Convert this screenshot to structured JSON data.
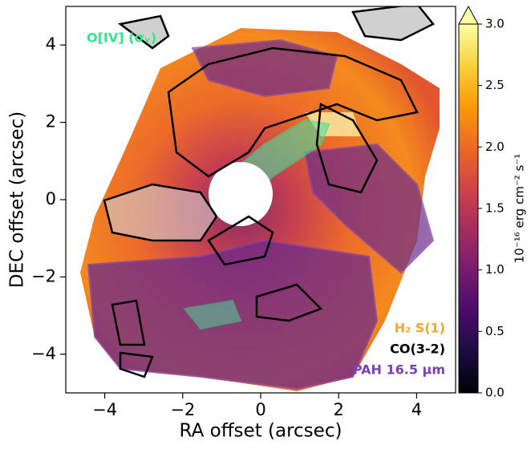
{
  "chart_data": {
    "type": "image",
    "xlabel": "RA offset (arcsec)",
    "ylabel": "DEC offset (arcsec)",
    "xlim": [
      -5,
      5
    ],
    "ylim": [
      -5,
      5
    ],
    "xticks": [
      {
        "value": -4,
        "label": "−4"
      },
      {
        "value": -2,
        "label": "−2"
      },
      0,
      2,
      4
    ],
    "yticks": [
      {
        "value": -4,
        "label": "−4"
      },
      {
        "value": -2,
        "label": "−2"
      },
      0,
      2,
      4
    ],
    "colorbar": {
      "label": "10⁻¹⁶ erg cm⁻² s⁻¹",
      "cmap": "inferno",
      "clim": [
        0,
        3
      ],
      "extend": "max",
      "ticks": [
        {
          "value": 0,
          "label": "0.0"
        },
        {
          "value": 0.5,
          "label": "0.5"
        },
        {
          "value": 1,
          "label": "1.0"
        },
        {
          "value": 1.5,
          "label": "1.5"
        },
        {
          "value": 2,
          "label": "2.0"
        },
        {
          "value": 2.5,
          "label": "2.5"
        },
        {
          "value": 3,
          "label": "3.0"
        }
      ]
    },
    "annotations": [
      {
        "text": "O[IV] (σᵥ)",
        "color": "#2ee88a"
      },
      {
        "text": "H₂ S(1)",
        "color": "#f5a623"
      },
      {
        "text": "CO(3-2)",
        "color": "#000000"
      },
      {
        "text": "PAH 16.5 μm",
        "color": "#7a3fb0"
      }
    ]
  }
}
